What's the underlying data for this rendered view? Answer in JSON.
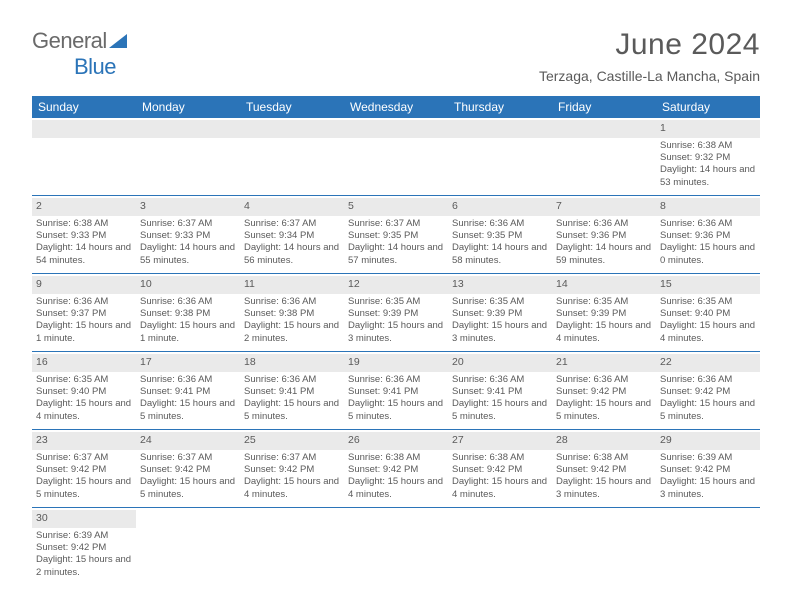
{
  "logo": {
    "text_general": "General",
    "text_blue": "Blue",
    "triangle_color": "#2b74b8"
  },
  "title": "June 2024",
  "location": "Terzaga, Castille-La Mancha, Spain",
  "colors": {
    "header_bg": "#2b74b8",
    "header_fg": "#ffffff",
    "text": "#5a5a5a",
    "daynum_bg": "#eaeaea",
    "row_border": "#2b74b8"
  },
  "day_headers": [
    "Sunday",
    "Monday",
    "Tuesday",
    "Wednesday",
    "Thursday",
    "Friday",
    "Saturday"
  ],
  "weeks": [
    [
      null,
      null,
      null,
      null,
      null,
      null,
      {
        "n": "1",
        "sr": "6:38 AM",
        "ss": "9:32 PM",
        "dl": "14 hours and 53 minutes."
      }
    ],
    [
      {
        "n": "2",
        "sr": "6:38 AM",
        "ss": "9:33 PM",
        "dl": "14 hours and 54 minutes."
      },
      {
        "n": "3",
        "sr": "6:37 AM",
        "ss": "9:33 PM",
        "dl": "14 hours and 55 minutes."
      },
      {
        "n": "4",
        "sr": "6:37 AM",
        "ss": "9:34 PM",
        "dl": "14 hours and 56 minutes."
      },
      {
        "n": "5",
        "sr": "6:37 AM",
        "ss": "9:35 PM",
        "dl": "14 hours and 57 minutes."
      },
      {
        "n": "6",
        "sr": "6:36 AM",
        "ss": "9:35 PM",
        "dl": "14 hours and 58 minutes."
      },
      {
        "n": "7",
        "sr": "6:36 AM",
        "ss": "9:36 PM",
        "dl": "14 hours and 59 minutes."
      },
      {
        "n": "8",
        "sr": "6:36 AM",
        "ss": "9:36 PM",
        "dl": "15 hours and 0 minutes."
      }
    ],
    [
      {
        "n": "9",
        "sr": "6:36 AM",
        "ss": "9:37 PM",
        "dl": "15 hours and 1 minute."
      },
      {
        "n": "10",
        "sr": "6:36 AM",
        "ss": "9:38 PM",
        "dl": "15 hours and 1 minute."
      },
      {
        "n": "11",
        "sr": "6:36 AM",
        "ss": "9:38 PM",
        "dl": "15 hours and 2 minutes."
      },
      {
        "n": "12",
        "sr": "6:35 AM",
        "ss": "9:39 PM",
        "dl": "15 hours and 3 minutes."
      },
      {
        "n": "13",
        "sr": "6:35 AM",
        "ss": "9:39 PM",
        "dl": "15 hours and 3 minutes."
      },
      {
        "n": "14",
        "sr": "6:35 AM",
        "ss": "9:39 PM",
        "dl": "15 hours and 4 minutes."
      },
      {
        "n": "15",
        "sr": "6:35 AM",
        "ss": "9:40 PM",
        "dl": "15 hours and 4 minutes."
      }
    ],
    [
      {
        "n": "16",
        "sr": "6:35 AM",
        "ss": "9:40 PM",
        "dl": "15 hours and 4 minutes."
      },
      {
        "n": "17",
        "sr": "6:36 AM",
        "ss": "9:41 PM",
        "dl": "15 hours and 5 minutes."
      },
      {
        "n": "18",
        "sr": "6:36 AM",
        "ss": "9:41 PM",
        "dl": "15 hours and 5 minutes."
      },
      {
        "n": "19",
        "sr": "6:36 AM",
        "ss": "9:41 PM",
        "dl": "15 hours and 5 minutes."
      },
      {
        "n": "20",
        "sr": "6:36 AM",
        "ss": "9:41 PM",
        "dl": "15 hours and 5 minutes."
      },
      {
        "n": "21",
        "sr": "6:36 AM",
        "ss": "9:42 PM",
        "dl": "15 hours and 5 minutes."
      },
      {
        "n": "22",
        "sr": "6:36 AM",
        "ss": "9:42 PM",
        "dl": "15 hours and 5 minutes."
      }
    ],
    [
      {
        "n": "23",
        "sr": "6:37 AM",
        "ss": "9:42 PM",
        "dl": "15 hours and 5 minutes."
      },
      {
        "n": "24",
        "sr": "6:37 AM",
        "ss": "9:42 PM",
        "dl": "15 hours and 5 minutes."
      },
      {
        "n": "25",
        "sr": "6:37 AM",
        "ss": "9:42 PM",
        "dl": "15 hours and 4 minutes."
      },
      {
        "n": "26",
        "sr": "6:38 AM",
        "ss": "9:42 PM",
        "dl": "15 hours and 4 minutes."
      },
      {
        "n": "27",
        "sr": "6:38 AM",
        "ss": "9:42 PM",
        "dl": "15 hours and 4 minutes."
      },
      {
        "n": "28",
        "sr": "6:38 AM",
        "ss": "9:42 PM",
        "dl": "15 hours and 3 minutes."
      },
      {
        "n": "29",
        "sr": "6:39 AM",
        "ss": "9:42 PM",
        "dl": "15 hours and 3 minutes."
      }
    ],
    [
      {
        "n": "30",
        "sr": "6:39 AM",
        "ss": "9:42 PM",
        "dl": "15 hours and 2 minutes."
      },
      null,
      null,
      null,
      null,
      null,
      null
    ]
  ],
  "labels": {
    "sunrise": "Sunrise: ",
    "sunset": "Sunset: ",
    "daylight": "Daylight: "
  }
}
